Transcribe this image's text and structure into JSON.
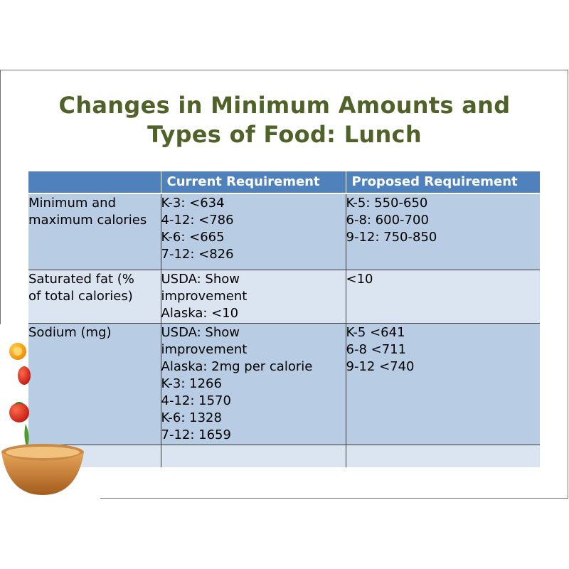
{
  "slide": {
    "title_lines": [
      "Changes in Minimum Amounts and",
      "Types of Food: Lunch"
    ]
  },
  "table": {
    "headers": [
      "",
      "Current Requirement",
      "Proposed Requirement"
    ],
    "rows": [
      {
        "label_lines": [
          "Minimum and",
          "maximum calories"
        ],
        "current_lines": [
          "K-3: <634",
          "4-12: <786",
          "K-6: <665",
          "7-12: <826"
        ],
        "proposed_lines": [
          "K-5: 550-650",
          "6-8: 600-700",
          "9-12: 750-850"
        ]
      },
      {
        "label_lines": [
          "Saturated fat (%",
          "of total calories)"
        ],
        "current_lines": [
          "USDA: Show",
          "improvement",
          "Alaska: <10"
        ],
        "proposed_lines": [
          "<10"
        ]
      },
      {
        "label_lines": [
          "Sodium (mg)"
        ],
        "current_lines": [
          "USDA: Show",
          "improvement",
          "Alaska: 2mg per calorie",
          "K-3: 1266",
          "4-12: 1570",
          "K-6: 1328",
          "7-12: 1659"
        ],
        "proposed_lines": [
          "K-5 <641",
          "6-8 <711",
          "9-12 <740"
        ]
      }
    ]
  },
  "colors": {
    "title": "#4f6228",
    "header_bg": "#4f81bd",
    "row_dark": "#b8cce4",
    "row_light": "#dbe5f1"
  },
  "decoration": {
    "icon": "vegetable-bowl-icon"
  }
}
